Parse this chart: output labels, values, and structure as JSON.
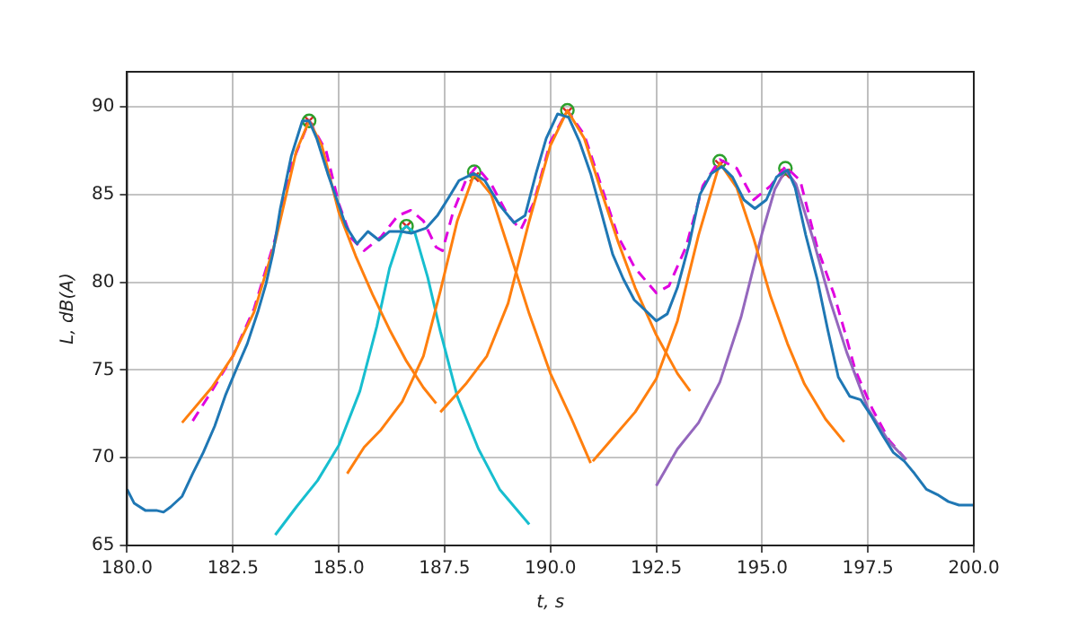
{
  "chart_data": {
    "type": "line",
    "xlabel": "t, s",
    "ylabel": "L, dB(A)",
    "xlim": [
      180,
      200
    ],
    "xticks": [
      {
        "value": 180,
        "label": "180.0"
      },
      {
        "value": 182.5,
        "label": "182.5"
      },
      {
        "value": 185,
        "label": "185.0"
      },
      {
        "value": 187.5,
        "label": "187.5"
      },
      {
        "value": 190,
        "label": "190.0"
      },
      {
        "value": 192.5,
        "label": "192.5"
      },
      {
        "value": 195,
        "label": "195.0"
      },
      {
        "value": 197.5,
        "label": "197.5"
      },
      {
        "value": 200,
        "label": "200.0"
      }
    ],
    "ylim": [
      65,
      92
    ],
    "yticks": [
      65,
      70,
      75,
      80,
      85,
      90
    ],
    "grid": true,
    "legend": false,
    "marker": "none",
    "line_style": "solid",
    "series": [
      {
        "color": "#1f77b4",
        "x": [
          180.0,
          180.17,
          180.43,
          180.69,
          180.86,
          181.03,
          181.3,
          181.55,
          181.8,
          182.07,
          182.33,
          182.59,
          182.84,
          183.1,
          183.28,
          183.45,
          183.62,
          183.88,
          184.14,
          184.3,
          184.48,
          184.74,
          185.0,
          185.17,
          185.43,
          185.69,
          185.95,
          186.2,
          186.47,
          186.72,
          187.07,
          187.33,
          187.59,
          187.84,
          188.19,
          188.45,
          188.8,
          189.14,
          189.4,
          189.66,
          189.9,
          190.17,
          190.43,
          190.69,
          190.95,
          191.2,
          191.47,
          191.72,
          191.98,
          192.24,
          192.5,
          192.76,
          193.0,
          193.28,
          193.53,
          193.8,
          194.05,
          194.3,
          194.57,
          194.83,
          195.1,
          195.34,
          195.6,
          195.78,
          196.03,
          196.3,
          196.55,
          196.8,
          197.07,
          197.33,
          197.6,
          197.84,
          198.1,
          198.36,
          198.6,
          198.88,
          199.14,
          199.4,
          199.65,
          200.0
        ],
        "values": [
          68.2,
          67.4,
          67.0,
          67.0,
          66.9,
          67.2,
          67.8,
          69.1,
          70.3,
          71.8,
          73.6,
          75.1,
          76.5,
          78.4,
          79.9,
          81.7,
          84.2,
          87.2,
          89.2,
          89.2,
          88.2,
          86.2,
          84.4,
          83.2,
          82.2,
          82.9,
          82.4,
          82.9,
          82.9,
          82.8,
          83.1,
          83.8,
          84.8,
          85.8,
          86.2,
          85.8,
          84.4,
          83.4,
          83.8,
          86.2,
          88.2,
          89.6,
          89.4,
          88.0,
          86.2,
          84.0,
          81.6,
          80.2,
          79.0,
          78.4,
          77.8,
          78.2,
          79.7,
          82.2,
          85.0,
          86.2,
          86.6,
          86.0,
          84.7,
          84.2,
          84.7,
          86.0,
          86.4,
          85.4,
          82.7,
          80.2,
          77.3,
          74.6,
          73.5,
          73.3,
          72.3,
          71.3,
          70.3,
          69.8,
          69.1,
          68.2,
          67.9,
          67.5,
          67.3,
          67.3
        ]
      },
      {
        "color": "#ff7f0e",
        "x": [
          181.3,
          182.0,
          182.5,
          183.0,
          183.5,
          184.0,
          184.3,
          184.6,
          185.0,
          185.4,
          185.8,
          186.2,
          186.6,
          187.0,
          187.3
        ],
        "values": [
          72.0,
          74.0,
          75.8,
          78.3,
          82.3,
          87.5,
          89.2,
          87.8,
          84.0,
          81.5,
          79.3,
          77.3,
          75.5,
          74.0,
          73.1
        ]
      },
      {
        "color": "#ff7f0e",
        "x": [
          185.2,
          185.6,
          186.0,
          186.5,
          187.0,
          187.4,
          187.8,
          188.2,
          188.6,
          189.0,
          189.5,
          190.0,
          190.5,
          190.95
        ],
        "values": [
          69.1,
          70.6,
          71.6,
          73.2,
          75.8,
          79.5,
          83.5,
          86.2,
          85.0,
          82.0,
          78.2,
          74.8,
          72.2,
          69.7
        ]
      },
      {
        "color": "#ff7f0e",
        "x": [
          187.4,
          188.0,
          188.5,
          189.0,
          189.5,
          190.0,
          190.4,
          190.8,
          191.2,
          191.6,
          192.0,
          192.5,
          193.0,
          193.3
        ],
        "values": [
          72.6,
          74.2,
          75.8,
          78.8,
          83.5,
          87.8,
          89.8,
          88.2,
          85.2,
          82.3,
          79.7,
          77.0,
          74.8,
          73.8
        ]
      },
      {
        "color": "#ff7f0e",
        "x": [
          191.0,
          191.5,
          192.0,
          192.5,
          193.0,
          193.5,
          194.0,
          194.4,
          194.8,
          195.2,
          195.6,
          196.0,
          196.5,
          196.94
        ],
        "values": [
          69.8,
          71.2,
          72.6,
          74.5,
          77.8,
          82.7,
          86.8,
          85.4,
          82.5,
          79.2,
          76.5,
          74.2,
          72.2,
          70.9
        ]
      },
      {
        "color": "#17becf",
        "x": [
          183.5,
          184.0,
          184.5,
          185.0,
          185.5,
          185.9,
          186.2,
          186.5,
          186.6,
          186.8,
          187.1,
          187.4,
          187.8,
          188.3,
          188.8,
          189.5
        ],
        "values": [
          65.6,
          67.2,
          68.7,
          70.7,
          73.8,
          77.5,
          80.8,
          83.0,
          83.2,
          82.8,
          80.3,
          77.2,
          73.5,
          70.5,
          68.2,
          66.2
        ]
      },
      {
        "color": "#9467bd",
        "x": [
          192.5,
          193.0,
          193.5,
          194.0,
          194.5,
          195.0,
          195.3,
          195.55,
          195.8,
          196.2,
          196.6,
          197.0,
          197.5,
          198.0,
          198.4
        ],
        "values": [
          68.4,
          70.5,
          72.0,
          74.3,
          78.0,
          82.8,
          85.3,
          86.4,
          85.6,
          82.5,
          79.0,
          76.0,
          72.8,
          70.9,
          69.9
        ]
      },
      {
        "color": "#e000e0",
        "line_style": "dashed",
        "x": [
          181.55,
          182.0,
          182.5,
          183.0,
          183.5,
          183.9,
          184.3,
          184.7,
          185.0,
          185.3,
          185.6,
          186.0,
          186.4,
          186.7,
          187.0,
          187.3,
          187.45,
          187.7,
          188.0,
          188.25,
          188.6,
          189.0,
          189.3,
          189.6,
          190.0,
          190.4,
          190.8,
          191.2,
          191.6,
          192.0,
          192.5,
          192.8,
          193.2,
          193.6,
          194.0,
          194.4,
          194.8,
          195.2,
          195.55,
          195.9,
          196.3,
          196.7,
          196.95,
          197.2,
          197.6,
          198.0,
          198.4
        ],
        "values": [
          72.1,
          73.8,
          75.8,
          78.5,
          82.5,
          86.8,
          89.2,
          87.5,
          84.5,
          82.5,
          81.8,
          82.6,
          83.8,
          84.1,
          83.5,
          82.0,
          81.8,
          84.0,
          85.8,
          86.6,
          85.6,
          83.8,
          83.0,
          84.5,
          88.0,
          89.8,
          88.4,
          85.5,
          82.6,
          80.8,
          79.4,
          79.8,
          82.0,
          85.5,
          87.0,
          86.5,
          84.7,
          85.5,
          86.6,
          85.8,
          82.0,
          79.3,
          77.2,
          75.0,
          72.8,
          71.0,
          69.9
        ]
      },
      {
        "type": "scatter",
        "marker": "circle",
        "color": "#2ca02c",
        "x": [
          184.3,
          186.6,
          188.2,
          190.4,
          194.0,
          195.55
        ],
        "values": [
          89.2,
          83.2,
          86.3,
          89.8,
          86.9,
          86.5
        ]
      },
      {
        "type": "scatter",
        "marker": "cross",
        "color": "#d62728",
        "x": [
          184.3,
          186.6,
          188.2,
          190.4,
          194.0,
          195.55
        ],
        "values": [
          89.2,
          83.2,
          86.0,
          89.7,
          86.7,
          86.2
        ]
      }
    ]
  }
}
